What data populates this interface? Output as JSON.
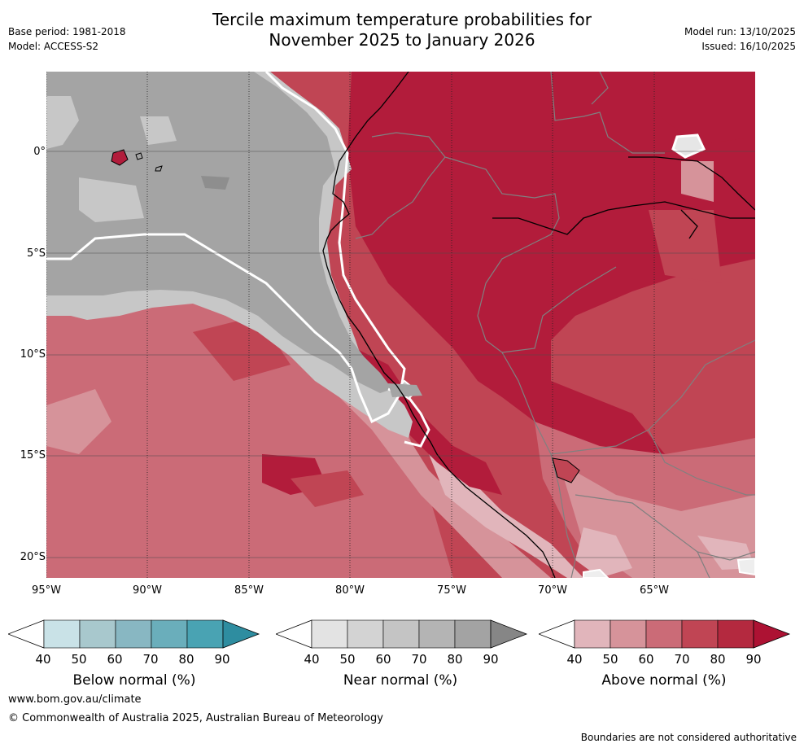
{
  "title": {
    "line1": "Tercile maximum temperature probabilities for",
    "line2": "November 2025 to January 2026"
  },
  "meta_left": {
    "base_period": "Base period: 1981-2018",
    "model": "Model: ACCESS-S2"
  },
  "meta_right": {
    "model_run": "Model run: 13/10/2025",
    "issued": "Issued: 16/10/2025"
  },
  "map": {
    "region": "Eastern Pacific / western South America",
    "y_ticks": [
      "0°",
      "5°S",
      "10°S",
      "15°S",
      "20°S"
    ],
    "x_ticks": [
      "95°W",
      "90°W",
      "85°W",
      "80°W",
      "75°W",
      "70°W",
      "65°W"
    ],
    "colors": {
      "near_base": "#a4a4a4",
      "near_light": "#c7c7c7",
      "above_90": "#b21c3b",
      "above_80": "#c04554",
      "above_70": "#cb6b77",
      "above_60": "#d6939a"
    }
  },
  "legends": [
    {
      "title": "Below normal (%)",
      "ticks": [
        "40",
        "50",
        "60",
        "70",
        "80",
        "90"
      ],
      "colors": [
        "#ffffff",
        "#c9e2e7",
        "#a8c8cd",
        "#88b7c2",
        "#6aaebb",
        "#49a3b3",
        "#2e8da0"
      ]
    },
    {
      "title": "Near normal (%)",
      "ticks": [
        "40",
        "50",
        "60",
        "70",
        "80",
        "90"
      ],
      "colors": [
        "#ffffff",
        "#e3e3e3",
        "#d3d3d3",
        "#c4c4c4",
        "#b4b4b4",
        "#a3a3a3",
        "#868686"
      ]
    },
    {
      "title": "Above normal (%)",
      "ticks": [
        "40",
        "50",
        "60",
        "70",
        "80",
        "90"
      ],
      "colors": [
        "#ffffff",
        "#e1b5bb",
        "#d6939a",
        "#cb6b77",
        "#c04554",
        "#b4293f",
        "#ad1233"
      ]
    }
  ],
  "footer": {
    "url": "www.bom.gov.au/climate",
    "copyright": "© Commonwealth of Australia 2025, Australian Bureau of Meteorology",
    "note": "Boundaries are not considered authoritative"
  }
}
